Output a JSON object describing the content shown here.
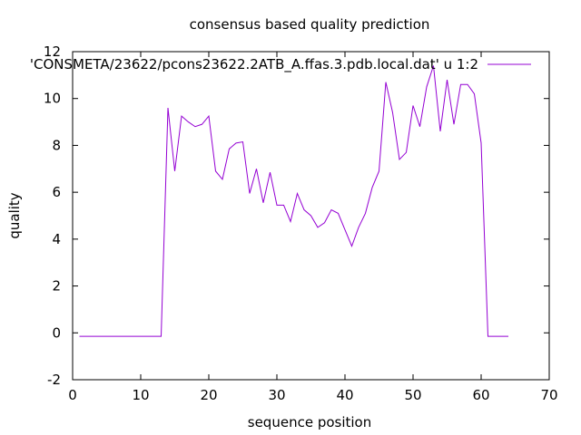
{
  "chart_data": {
    "type": "line",
    "title": "consensus based quality prediction",
    "xlabel": "sequence position",
    "ylabel": "quality",
    "xlim": [
      0,
      70
    ],
    "ylim": [
      -2,
      12
    ],
    "xticks": [
      0,
      10,
      20,
      30,
      40,
      50,
      60,
      70
    ],
    "yticks": [
      -2,
      0,
      2,
      4,
      6,
      8,
      10,
      12
    ],
    "grid": false,
    "legend_position": "top-right",
    "series": [
      {
        "name": "'CONSMETA/23622/pcons23622.2ATB_A.ffas.3.pdb.local.dat' u 1:2",
        "color": "#9400d3",
        "x": [
          1,
          2,
          3,
          4,
          5,
          6,
          7,
          8,
          9,
          10,
          11,
          12,
          13,
          14,
          15,
          16,
          17,
          18,
          19,
          20,
          21,
          22,
          23,
          24,
          25,
          26,
          27,
          28,
          29,
          30,
          31,
          32,
          33,
          34,
          35,
          36,
          37,
          38,
          39,
          40,
          41,
          42,
          43,
          44,
          45,
          46,
          47,
          48,
          49,
          50,
          51,
          52,
          53,
          54,
          55,
          56,
          57,
          58,
          59,
          60,
          61,
          62,
          63,
          64
        ],
        "y": [
          -0.15,
          -0.15,
          -0.15,
          -0.15,
          -0.15,
          -0.15,
          -0.15,
          -0.15,
          -0.15,
          -0.15,
          -0.15,
          -0.15,
          -0.15,
          9.6,
          6.9,
          9.25,
          9.0,
          8.8,
          8.9,
          9.25,
          6.9,
          6.55,
          7.85,
          8.1,
          8.15,
          5.95,
          7.0,
          5.55,
          6.85,
          5.45,
          5.45,
          4.75,
          5.95,
          5.25,
          5.0,
          4.5,
          4.7,
          5.25,
          5.1,
          4.4,
          3.7,
          4.5,
          5.1,
          6.2,
          6.9,
          10.7,
          9.4,
          7.4,
          7.7,
          9.7,
          8.8,
          10.5,
          11.4,
          8.6,
          10.8,
          8.9,
          10.6,
          10.6,
          10.2,
          8.1,
          -0.15,
          -0.15,
          -0.15,
          -0.15
        ]
      }
    ]
  }
}
